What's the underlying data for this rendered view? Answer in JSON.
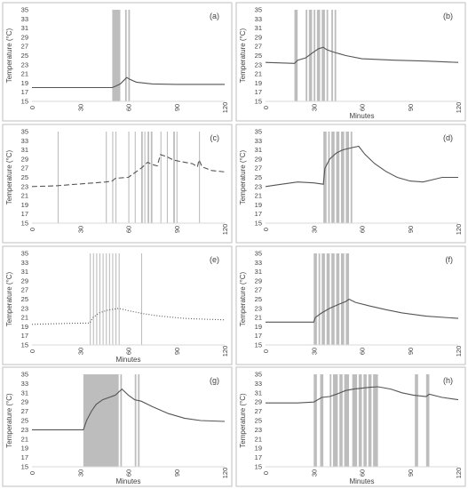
{
  "chart_data": [
    {
      "type": "line",
      "label": "(a)",
      "xlabel": "",
      "ylabel": "Temperature (°C)",
      "xlim": [
        0,
        120
      ],
      "ylim": [
        15,
        35
      ],
      "xticks": [
        0,
        30,
        60,
        90,
        120
      ],
      "yticks": [
        15,
        17,
        19,
        21,
        23,
        25,
        27,
        29,
        31,
        33,
        35
      ],
      "shaded_x": [
        [
          50,
          55
        ],
        [
          58,
          59
        ],
        [
          60,
          61
        ]
      ],
      "line": [
        [
          0,
          18
        ],
        [
          50,
          18
        ],
        [
          52,
          18.3
        ],
        [
          55,
          18.8
        ],
        [
          57,
          19.5
        ],
        [
          59,
          20.2
        ],
        [
          61,
          19.8
        ],
        [
          65,
          19.2
        ],
        [
          75,
          18.8
        ],
        [
          90,
          18.7
        ],
        [
          120,
          18.7
        ]
      ],
      "series_style": "solid",
      "color": "#555555",
      "shade": "#bdbdbd"
    },
    {
      "type": "line",
      "label": "(b)",
      "xlabel": "Minutes",
      "ylabel": "Temperature (°C)",
      "xlim": [
        0,
        120
      ],
      "ylim": [
        15,
        35
      ],
      "xticks": [
        0,
        30,
        60,
        90,
        120
      ],
      "yticks": [
        15,
        17,
        19,
        21,
        23,
        25,
        27,
        29,
        31,
        33,
        35
      ],
      "shaded_x": [
        [
          18,
          20
        ],
        [
          25,
          26
        ],
        [
          27,
          29
        ],
        [
          30,
          31
        ],
        [
          32,
          34
        ],
        [
          35,
          37
        ],
        [
          38,
          39
        ],
        [
          41,
          42
        ],
        [
          43,
          44
        ]
      ],
      "line": [
        [
          0,
          23.5
        ],
        [
          18,
          23.3
        ],
        [
          20,
          24
        ],
        [
          25,
          24.5
        ],
        [
          30,
          25.8
        ],
        [
          33,
          26.5
        ],
        [
          36,
          26.8
        ],
        [
          38,
          26.3
        ],
        [
          42,
          25.8
        ],
        [
          50,
          25
        ],
        [
          60,
          24.3
        ],
        [
          80,
          24
        ],
        [
          100,
          23.8
        ],
        [
          120,
          23.5
        ]
      ],
      "series_style": "solid",
      "color": "#555555",
      "shade": "#bdbdbd"
    },
    {
      "type": "line",
      "label": "(c)",
      "xlabel": "",
      "ylabel": "Temperature (°C)",
      "xlim": [
        0,
        120
      ],
      "ylim": [
        15,
        35
      ],
      "xticks": [
        0,
        30,
        60,
        90,
        120
      ],
      "yticks": [
        15,
        17,
        19,
        21,
        23,
        25,
        27,
        29,
        31,
        33,
        35
      ],
      "shaded_x": [
        [
          16,
          16.6
        ],
        [
          46,
          46.6
        ],
        [
          50,
          50.6
        ],
        [
          52,
          52.6
        ],
        [
          60,
          60.6
        ],
        [
          64,
          64.6
        ],
        [
          68,
          69
        ],
        [
          70,
          70.6
        ],
        [
          72,
          73
        ],
        [
          74,
          75
        ],
        [
          80,
          80.6
        ],
        [
          84,
          84.6
        ],
        [
          88,
          89
        ],
        [
          90,
          90.6
        ],
        [
          104,
          104.6
        ]
      ],
      "line": [
        [
          0,
          23
        ],
        [
          10,
          23.1
        ],
        [
          16,
          23.2
        ],
        [
          46,
          24
        ],
        [
          50,
          24.2
        ],
        [
          52,
          24.8
        ],
        [
          60,
          25
        ],
        [
          64,
          26
        ],
        [
          68,
          27
        ],
        [
          72,
          28.3
        ],
        [
          75,
          27.8
        ],
        [
          78,
          27.5
        ],
        [
          80,
          30
        ],
        [
          84,
          29.5
        ],
        [
          88,
          28.8
        ],
        [
          92,
          28.5
        ],
        [
          100,
          28
        ],
        [
          103,
          27.3
        ],
        [
          104,
          28.8
        ],
        [
          106,
          27.3
        ],
        [
          112,
          26.5
        ],
        [
          120,
          26.2
        ]
      ],
      "series_style": "dashed",
      "color": "#555555",
      "shade": "#bdbdbd"
    },
    {
      "type": "line",
      "label": "(d)",
      "xlabel": "",
      "ylabel": "Temperature (°C)",
      "xlim": [
        0,
        120
      ],
      "ylim": [
        15,
        35
      ],
      "xticks": [
        0,
        30,
        60,
        90,
        120
      ],
      "yticks": [
        15,
        17,
        19,
        21,
        23,
        25,
        27,
        29,
        31,
        33,
        35
      ],
      "shaded_x": [
        [
          36,
          38
        ],
        [
          39,
          40
        ],
        [
          41,
          43
        ],
        [
          44,
          46
        ],
        [
          47,
          49
        ],
        [
          50,
          52
        ],
        [
          53,
          54
        ]
      ],
      "line": [
        [
          0,
          23
        ],
        [
          10,
          23.5
        ],
        [
          20,
          24
        ],
        [
          30,
          23.8
        ],
        [
          36,
          23.5
        ],
        [
          37,
          27
        ],
        [
          40,
          29
        ],
        [
          44,
          30.3
        ],
        [
          48,
          31
        ],
        [
          54,
          31.5
        ],
        [
          58,
          31.8
        ],
        [
          62,
          30
        ],
        [
          68,
          28
        ],
        [
          75,
          26.3
        ],
        [
          82,
          25
        ],
        [
          90,
          24.2
        ],
        [
          98,
          24
        ],
        [
          104,
          24.5
        ],
        [
          110,
          25
        ],
        [
          120,
          25
        ]
      ],
      "series_style": "solid",
      "color": "#555555",
      "shade": "#bdbdbd"
    },
    {
      "type": "line",
      "label": "(e)",
      "xlabel": "Minutes",
      "ylabel": "Temperature (°C)",
      "xlim": [
        0,
        120
      ],
      "ylim": [
        15,
        35
      ],
      "xticks": [
        0,
        30,
        60,
        90,
        120
      ],
      "yticks": [
        15,
        17,
        19,
        21,
        23,
        25,
        27,
        29,
        31,
        33,
        35
      ],
      "shaded_x": [
        [
          36,
          36.6
        ],
        [
          38,
          38.6
        ],
        [
          40,
          40.6
        ],
        [
          42,
          42.6
        ],
        [
          44,
          44.6
        ],
        [
          46,
          46.6
        ],
        [
          48,
          48.6
        ],
        [
          50,
          50.6
        ],
        [
          52,
          52.6
        ],
        [
          54,
          54.6
        ],
        [
          68,
          68.6
        ]
      ],
      "line": [
        [
          0,
          19.5
        ],
        [
          20,
          19.7
        ],
        [
          36,
          19.8
        ],
        [
          38,
          21
        ],
        [
          42,
          22
        ],
        [
          47,
          22.6
        ],
        [
          54,
          23
        ],
        [
          60,
          22.5
        ],
        [
          70,
          21.8
        ],
        [
          80,
          21.3
        ],
        [
          95,
          20.8
        ],
        [
          110,
          20.6
        ],
        [
          120,
          20.5
        ]
      ],
      "series_style": "dotted",
      "color": "#555555",
      "shade": "#bdbdbd"
    },
    {
      "type": "line",
      "label": "(f)",
      "xlabel": "",
      "ylabel": "Temperature (°C)",
      "xlim": [
        0,
        120
      ],
      "ylim": [
        15,
        35
      ],
      "xticks": [
        0,
        30,
        60,
        90,
        120
      ],
      "yticks": [
        15,
        17,
        19,
        21,
        23,
        25,
        27,
        29,
        31,
        33,
        35
      ],
      "shaded_x": [
        [
          30,
          32
        ],
        [
          33,
          34
        ],
        [
          35,
          37
        ],
        [
          38,
          40
        ],
        [
          41,
          43
        ],
        [
          44,
          46
        ],
        [
          47,
          49
        ],
        [
          50,
          52
        ]
      ],
      "line": [
        [
          0,
          20
        ],
        [
          30,
          20
        ],
        [
          31,
          21
        ],
        [
          35,
          22
        ],
        [
          40,
          23
        ],
        [
          45,
          23.8
        ],
        [
          50,
          24.5
        ],
        [
          52,
          25
        ],
        [
          56,
          24.3
        ],
        [
          65,
          23.5
        ],
        [
          75,
          22.7
        ],
        [
          85,
          22
        ],
        [
          100,
          21.3
        ],
        [
          120,
          20.8
        ]
      ],
      "series_style": "solid",
      "color": "#555555",
      "shade": "#bdbdbd"
    },
    {
      "type": "line",
      "label": "(g)",
      "xlabel": "Minutes",
      "ylabel": "Temperature (°C)",
      "xlim": [
        0,
        120
      ],
      "ylim": [
        15,
        35
      ],
      "xticks": [
        0,
        30,
        60,
        90,
        120
      ],
      "yticks": [
        15,
        17,
        19,
        21,
        23,
        25,
        27,
        29,
        31,
        33,
        35
      ],
      "shaded_x": [
        [
          32,
          54
        ],
        [
          55,
          56
        ],
        [
          64,
          65
        ],
        [
          66,
          67
        ]
      ],
      "line": [
        [
          0,
          23
        ],
        [
          15,
          23
        ],
        [
          32,
          23
        ],
        [
          34,
          25
        ],
        [
          37,
          27
        ],
        [
          40,
          28.5
        ],
        [
          44,
          29.5
        ],
        [
          48,
          30
        ],
        [
          52,
          30.5
        ],
        [
          56,
          31.8
        ],
        [
          60,
          30.5
        ],
        [
          64,
          29.5
        ],
        [
          68,
          29.2
        ],
        [
          75,
          28
        ],
        [
          85,
          26.5
        ],
        [
          95,
          25.5
        ],
        [
          105,
          25
        ],
        [
          120,
          24.8
        ]
      ],
      "series_style": "solid",
      "color": "#555555",
      "shade": "#bdbdbd"
    },
    {
      "type": "line",
      "label": "(h)",
      "xlabel": "Minutes",
      "ylabel": "Temperature (°C)",
      "xlim": [
        0,
        120
      ],
      "ylim": [
        15,
        35
      ],
      "xticks": [
        0,
        30,
        60,
        90,
        120
      ],
      "yticks": [
        15,
        17,
        19,
        21,
        23,
        25,
        27,
        29,
        31,
        33,
        35
      ],
      "shaded_x": [
        [
          30,
          32
        ],
        [
          34,
          36
        ],
        [
          40,
          41
        ],
        [
          42,
          45
        ],
        [
          46,
          48
        ],
        [
          49,
          52
        ],
        [
          54,
          57
        ],
        [
          58,
          60
        ],
        [
          61,
          63
        ],
        [
          64,
          66
        ],
        [
          67,
          70
        ],
        [
          93,
          95
        ],
        [
          100,
          102
        ]
      ],
      "line": [
        [
          0,
          28.8
        ],
        [
          20,
          28.8
        ],
        [
          30,
          29
        ],
        [
          35,
          30
        ],
        [
          40,
          30.2
        ],
        [
          45,
          30.8
        ],
        [
          50,
          31.5
        ],
        [
          55,
          31.8
        ],
        [
          60,
          32
        ],
        [
          65,
          32.2
        ],
        [
          70,
          32.3
        ],
        [
          78,
          31.8
        ],
        [
          85,
          31
        ],
        [
          92,
          30.5
        ],
        [
          100,
          30.2
        ],
        [
          102,
          30.7
        ],
        [
          110,
          30
        ],
        [
          120,
          29.5
        ]
      ],
      "series_style": "solid",
      "color": "#555555",
      "shade": "#bdbdbd"
    }
  ]
}
